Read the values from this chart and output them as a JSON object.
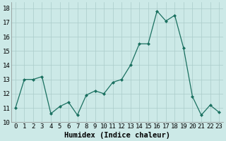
{
  "x": [
    0,
    1,
    2,
    3,
    4,
    5,
    6,
    7,
    8,
    9,
    10,
    11,
    12,
    13,
    14,
    15,
    16,
    17,
    18,
    19,
    20,
    21,
    22,
    23
  ],
  "y": [
    11.0,
    13.0,
    13.0,
    13.2,
    10.6,
    11.1,
    11.4,
    10.5,
    11.9,
    12.2,
    12.0,
    12.8,
    13.0,
    14.0,
    15.5,
    15.5,
    17.8,
    17.1,
    17.5,
    15.2,
    11.8,
    10.5,
    11.2,
    10.7
  ],
  "xlim": [
    -0.5,
    23.5
  ],
  "ylim": [
    10,
    18.4
  ],
  "yticks": [
    10,
    11,
    12,
    13,
    14,
    15,
    16,
    17,
    18
  ],
  "xticks": [
    0,
    1,
    2,
    3,
    4,
    5,
    6,
    7,
    8,
    9,
    10,
    11,
    12,
    13,
    14,
    15,
    16,
    17,
    18,
    19,
    20,
    21,
    22,
    23
  ],
  "xlabel": "Humidex (Indice chaleur)",
  "line_color": "#1a7060",
  "marker": "D",
  "marker_size": 2.0,
  "bg_color": "#cce9e7",
  "grid_color": "#aaccca",
  "xlabel_fontsize": 7.5,
  "tick_fontsize": 6.5,
  "line_width": 0.9
}
